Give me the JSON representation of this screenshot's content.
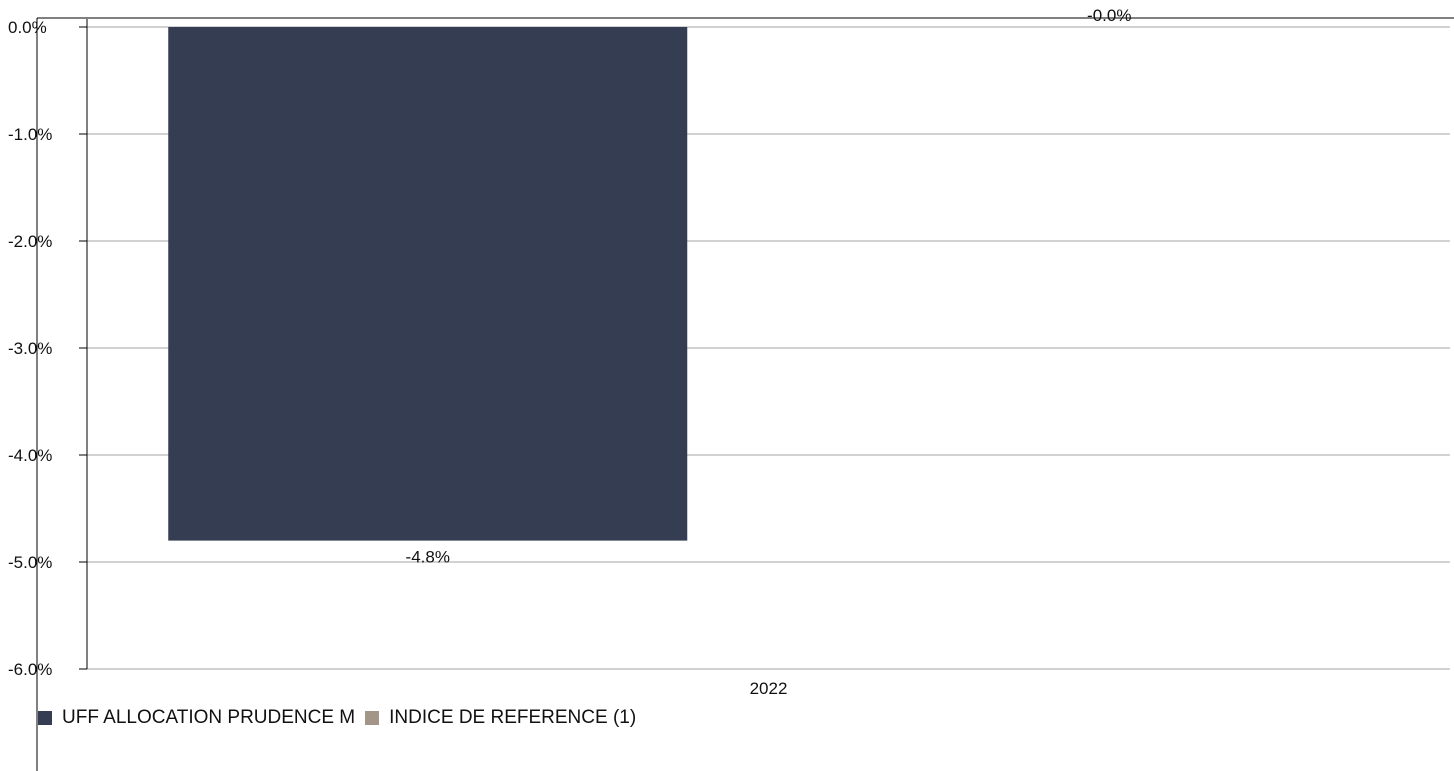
{
  "chart_data": {
    "type": "bar",
    "categories": [
      "2022"
    ],
    "series": [
      {
        "name": "UFF ALLOCATION PRUDENCE M",
        "values": [
          -4.8
        ],
        "color": "#343d52",
        "label": "-4.8%"
      },
      {
        "name": "INDICE DE REFERENCE (1)",
        "values": [
          0.0
        ],
        "color": "#a39588",
        "label": "-0.0%"
      }
    ],
    "ylim": [
      -6,
      0
    ],
    "yticks": [
      0,
      -1,
      -2,
      -3,
      -4,
      -5,
      -6
    ],
    "ytick_labels": [
      "0.0%",
      "-1.0%",
      "-2.0%",
      "-3.0%",
      "-4.0%",
      "-5.0%",
      "-6.0%"
    ],
    "grid": true,
    "legend_position": "bottom-left",
    "title": "",
    "xlabel": "",
    "ylabel": ""
  }
}
